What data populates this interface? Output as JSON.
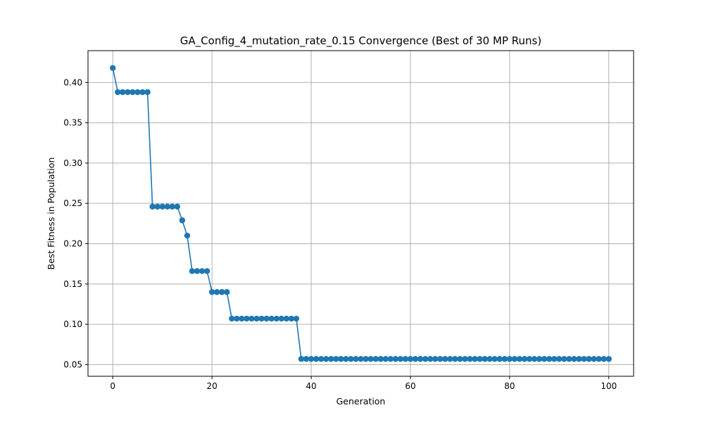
{
  "chart_data": {
    "type": "line",
    "title": "GA_Config_4_mutation_rate_0.15 Convergence (Best of 30 MP Runs)",
    "xlabel": "Generation",
    "ylabel": "Best Fitness in Population",
    "xlim": [
      -5,
      105
    ],
    "ylim": [
      0.0355,
      0.4395
    ],
    "xticks": [
      0,
      20,
      40,
      60,
      80,
      100
    ],
    "yticks": [
      0.05,
      0.1,
      0.15,
      0.2,
      0.25,
      0.3,
      0.35,
      0.4
    ],
    "xtick_labels": [
      "0",
      "20",
      "40",
      "60",
      "80",
      "100"
    ],
    "ytick_labels": [
      "0.05",
      "0.10",
      "0.15",
      "0.20",
      "0.25",
      "0.30",
      "0.35",
      "0.40"
    ],
    "grid": true,
    "marker": "circle",
    "color": "#1f77b4",
    "series": [
      {
        "x": [
          0,
          1,
          2,
          3,
          4,
          5,
          6,
          7,
          8,
          9,
          10,
          11,
          12,
          13,
          14,
          15,
          16,
          17,
          18,
          19,
          20,
          21,
          22,
          23,
          24,
          25,
          26,
          27,
          28,
          29,
          30,
          31,
          32,
          33,
          34,
          35,
          36,
          37,
          38,
          39,
          40,
          41,
          42,
          43,
          44,
          45,
          46,
          47,
          48,
          49,
          50,
          51,
          52,
          53,
          54,
          55,
          56,
          57,
          58,
          59,
          60,
          61,
          62,
          63,
          64,
          65,
          66,
          67,
          68,
          69,
          70,
          71,
          72,
          73,
          74,
          75,
          76,
          77,
          78,
          79,
          80,
          81,
          82,
          83,
          84,
          85,
          86,
          87,
          88,
          89,
          90,
          91,
          92,
          93,
          94,
          95,
          96,
          97,
          98,
          99,
          100
        ],
        "values": [
          0.418,
          0.388,
          0.388,
          0.388,
          0.388,
          0.388,
          0.388,
          0.388,
          0.246,
          0.246,
          0.246,
          0.246,
          0.246,
          0.246,
          0.229,
          0.21,
          0.166,
          0.166,
          0.166,
          0.166,
          0.14,
          0.14,
          0.14,
          0.14,
          0.107,
          0.107,
          0.107,
          0.107,
          0.107,
          0.107,
          0.107,
          0.107,
          0.107,
          0.107,
          0.107,
          0.107,
          0.107,
          0.107,
          0.057,
          0.057,
          0.057,
          0.057,
          0.057,
          0.057,
          0.057,
          0.057,
          0.057,
          0.057,
          0.057,
          0.057,
          0.057,
          0.057,
          0.057,
          0.057,
          0.057,
          0.057,
          0.057,
          0.057,
          0.057,
          0.057,
          0.057,
          0.057,
          0.057,
          0.057,
          0.057,
          0.057,
          0.057,
          0.057,
          0.057,
          0.057,
          0.057,
          0.057,
          0.057,
          0.057,
          0.057,
          0.057,
          0.057,
          0.057,
          0.057,
          0.057,
          0.057,
          0.057,
          0.057,
          0.057,
          0.057,
          0.057,
          0.057,
          0.057,
          0.057,
          0.057,
          0.057,
          0.057,
          0.057,
          0.057,
          0.057,
          0.057,
          0.057,
          0.057,
          0.057,
          0.057,
          0.057
        ]
      }
    ]
  }
}
